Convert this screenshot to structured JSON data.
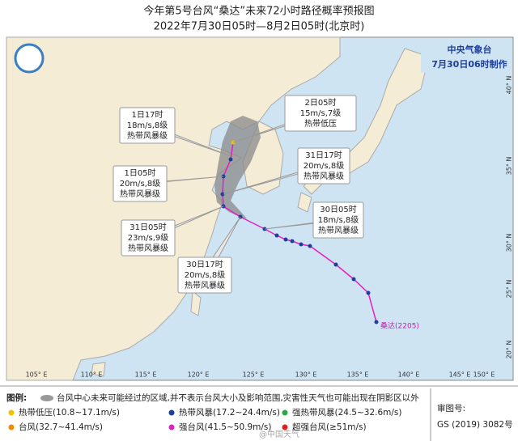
{
  "header": {
    "title": "今年第5号台风“桑达”未来72小时路径概率预报图",
    "subtitle": "2022年7月30日05时—8月2日05时(北京时)"
  },
  "agency": {
    "name": "中央气象台",
    "made": "7月30日06时制作"
  },
  "callouts": [
    {
      "time": "2日05时",
      "wind": "15m/s,7级",
      "level": "热带低压"
    },
    {
      "time": "1日17时",
      "wind": "18m/s,8级",
      "level": "热带风暴级"
    },
    {
      "time": "31日17时",
      "wind": "20m/s,8级",
      "level": "热带风暴级"
    },
    {
      "time": "1日05时",
      "wind": "20m/s,8级",
      "level": "热带风暴级"
    },
    {
      "time": "30日05时",
      "wind": "18m/s,8级",
      "level": "热带风暴级"
    },
    {
      "time": "31日05时",
      "wind": "23m/s,9级",
      "level": "热带风暴级"
    },
    {
      "time": "30日17时",
      "wind": "20m/s,8级",
      "level": "热带风暴级"
    }
  ],
  "storm_label": "桑达(2205)",
  "lon_labels": [
    "105° E",
    "110° E",
    "115° E",
    "120° E",
    "125° E",
    "130° E",
    "135° E",
    "140° E",
    "145° E",
    "150° E"
  ],
  "lat_labels": [
    "40° N",
    "35° N",
    "30° N",
    "25° N",
    "20° N"
  ],
  "legend": {
    "title": "图例:",
    "cone": "台风中心未来可能经过的区域,并不表示台风大小及影响范围,灾害性天气也可能出现在阴影区以外",
    "items": [
      "热带低压(10.8~17.1m/s)",
      "热带风暴(17.2~24.4m/s)",
      "强热带风暴(24.5~32.6m/s)",
      "台风(32.7~41.4m/s)",
      "强台风(41.5~50.9m/s)",
      "超强台风(≥51m/s)"
    ]
  },
  "approval": {
    "label": "审图号:",
    "number": "GS (2019) 3082号"
  },
  "watermark": "@中国天气"
}
